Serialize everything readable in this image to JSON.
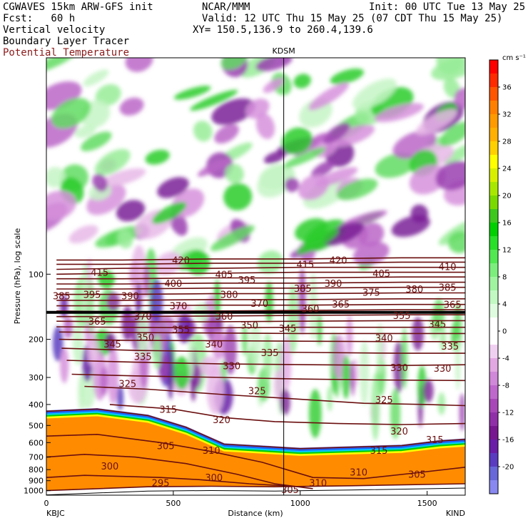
{
  "header": {
    "model": "CGWAVES 15km ARW-GFS init",
    "org": "NCAR/MMM",
    "init": "Init: 00 UTC Tue 13 May 25",
    "fcst": "Fcst:   60 h",
    "valid": "Valid: 12 UTC Thu 15 May 25 (07 CDT Thu 15 May 25)",
    "field1": "Vertical velocity",
    "xy": "XY= 150.5,136.9 to 260.4,139.6",
    "field2": "Boundary Layer Tracer",
    "field3": "Potential Temperature"
  },
  "colors": {
    "field3_text": "#8b1a1a",
    "contour": "#6b0f0f",
    "tracer": "#ff8c00",
    "terrain": "#ffffff"
  },
  "chart_data": {
    "type": "heatmap",
    "xlabel": "Distance (km)",
    "ylabel": "Pressure (hPa), log scale",
    "xlim": [
      0,
      1650
    ],
    "ylim": [
      1050,
      10
    ],
    "yscale": "log",
    "x_ticks": [
      0,
      500,
      1000,
      1500
    ],
    "x_tick_labels": [
      "0",
      "500",
      "1000",
      "1500"
    ],
    "y_ticks": [
      100,
      200,
      300,
      400,
      500,
      600,
      700,
      800,
      900,
      1000
    ],
    "y_tick_labels": [
      "100",
      "200",
      "300",
      "400",
      "500",
      "600",
      "700",
      "800",
      "900",
      "1000"
    ],
    "station_left": "KBJC",
    "station_right": "KIND",
    "station_mid": "KDSM",
    "station_mid_x": 935,
    "colorbar": {
      "unit": "cm s⁻¹",
      "tick_values": [
        36,
        32,
        28,
        24,
        20,
        16,
        12,
        8,
        4,
        0,
        -4,
        -8,
        -12,
        -16,
        -20
      ],
      "tick_labels": [
        "36",
        "32",
        "28",
        "24",
        "20",
        "16",
        "12",
        "8",
        "4",
        "0",
        "-4",
        "-8",
        "-12",
        "-16",
        "-20"
      ],
      "colors": [
        "#ff0000",
        "#ff2a00",
        "#ff5500",
        "#ff8000",
        "#ff9a00",
        "#ffb000",
        "#ffd000",
        "#ffff00",
        "#d8f000",
        "#a8e800",
        "#7ada00",
        "#3ec81e",
        "#00d000",
        "#28e028",
        "#52e852",
        "#7cee7c",
        "#a0f4a0",
        "#c2f8c2",
        "#e0fce0",
        "#ffffff",
        "#ffffff",
        "#f0d0f0",
        "#e2a8e2",
        "#d088d8",
        "#be68cc",
        "#a848b8",
        "#9030a8",
        "#781890",
        "#6a1ea8",
        "#5a3cc0",
        "#6868d8",
        "#8888f0"
      ]
    },
    "theta_contours": [
      {
        "label": "295",
        "points": [
          [
            0,
            1000
          ],
          [
            200,
            980
          ],
          [
            400,
            960
          ],
          [
            650,
            955
          ],
          [
            900,
            960
          ],
          [
            1200,
            950
          ],
          [
            1650,
            930
          ]
        ]
      },
      {
        "label": "300",
        "points": [
          [
            0,
            870
          ],
          [
            150,
            850
          ],
          [
            300,
            860
          ],
          [
            450,
            870
          ],
          [
            600,
            890
          ],
          [
            800,
            930
          ],
          [
            1000,
            960
          ]
        ]
      },
      {
        "label": "305",
        "points": [
          [
            0,
            700
          ],
          [
            150,
            680
          ],
          [
            350,
            700
          ],
          [
            550,
            750
          ],
          [
            750,
            840
          ],
          [
            900,
            930
          ],
          [
            1050,
            980
          ]
        ]
      },
      {
        "label": "310",
        "points": [
          [
            0,
            560
          ],
          [
            200,
            550
          ],
          [
            450,
            600
          ],
          [
            650,
            660
          ],
          [
            850,
            740
          ],
          [
            1050,
            870
          ],
          [
            1250,
            880
          ],
          [
            1450,
            830
          ],
          [
            1650,
            780
          ]
        ]
      },
      {
        "label": "315",
        "points": [
          [
            0,
            430
          ],
          [
            200,
            420
          ],
          [
            400,
            450
          ],
          [
            550,
            510
          ],
          [
            700,
            610
          ],
          [
            1000,
            640
          ],
          [
            1400,
            620
          ],
          [
            1550,
            590
          ],
          [
            1650,
            580
          ]
        ]
      },
      {
        "label": "320",
        "points": [
          [
            250,
            400
          ],
          [
            500,
            420
          ],
          [
            700,
            460
          ],
          [
            900,
            480
          ],
          [
            1150,
            490
          ],
          [
            1400,
            495
          ],
          [
            1650,
            490
          ]
        ]
      },
      {
        "label": "325",
        "points": [
          [
            150,
            330
          ],
          [
            400,
            340
          ],
          [
            700,
            360
          ],
          [
            950,
            375
          ],
          [
            1250,
            395
          ],
          [
            1500,
            400
          ],
          [
            1650,
            405
          ]
        ]
      },
      {
        "label": "330",
        "points": [
          [
            100,
            290
          ],
          [
            350,
            295
          ],
          [
            700,
            300
          ],
          [
            1000,
            305
          ],
          [
            1300,
            308
          ],
          [
            1650,
            310
          ]
        ]
      },
      {
        "label": "335",
        "points": [
          [
            80,
            250
          ],
          [
            350,
            255
          ],
          [
            700,
            260
          ],
          [
            1050,
            262
          ],
          [
            1400,
            264
          ],
          [
            1650,
            262
          ]
        ]
      },
      {
        "label": "340",
        "points": [
          [
            60,
            220
          ],
          [
            350,
            225
          ],
          [
            700,
            228
          ],
          [
            1050,
            230
          ],
          [
            1400,
            232
          ],
          [
            1650,
            232
          ]
        ]
      },
      {
        "label": "345",
        "points": [
          [
            50,
            200
          ],
          [
            300,
            202
          ],
          [
            650,
            203
          ],
          [
            1000,
            204
          ],
          [
            1400,
            205
          ],
          [
            1650,
            205
          ]
        ]
      },
      {
        "label": "350",
        "points": [
          [
            50,
            185
          ],
          [
            300,
            186
          ],
          [
            650,
            187
          ],
          [
            1000,
            188
          ],
          [
            1400,
            188
          ],
          [
            1650,
            188
          ]
        ]
      },
      {
        "label": "355",
        "points": [
          [
            40,
            175
          ],
          [
            300,
            176
          ],
          [
            650,
            177
          ],
          [
            1000,
            176
          ],
          [
            1400,
            176
          ],
          [
            1650,
            176
          ]
        ]
      },
      {
        "label": "360",
        "points": [
          [
            40,
            165
          ],
          [
            300,
            166
          ],
          [
            650,
            166
          ],
          [
            1000,
            165
          ],
          [
            1400,
            164
          ],
          [
            1650,
            164
          ]
        ]
      },
      {
        "label": "365",
        "points": [
          [
            40,
            157
          ],
          [
            300,
            157
          ],
          [
            650,
            156
          ],
          [
            1000,
            155
          ],
          [
            1400,
            154
          ],
          [
            1650,
            154
          ]
        ]
      },
      {
        "label": "370",
        "points": [
          [
            40,
            148
          ],
          [
            300,
            149
          ],
          [
            650,
            148
          ],
          [
            1000,
            147
          ],
          [
            1400,
            146
          ],
          [
            1650,
            146
          ]
        ]
      },
      {
        "label": "375",
        "points": [
          [
            40,
            140
          ],
          [
            300,
            140
          ],
          [
            650,
            139
          ],
          [
            1000,
            139
          ],
          [
            1400,
            138
          ],
          [
            1650,
            138
          ]
        ]
      },
      {
        "label": "380",
        "points": [
          [
            40,
            132
          ],
          [
            300,
            132
          ],
          [
            650,
            131
          ],
          [
            1000,
            131
          ],
          [
            1400,
            130
          ],
          [
            1650,
            130
          ]
        ]
      },
      {
        "label": "385",
        "points": [
          [
            40,
            124
          ],
          [
            300,
            124
          ],
          [
            650,
            123
          ],
          [
            1000,
            123
          ],
          [
            1400,
            122
          ],
          [
            1650,
            122
          ]
        ]
      },
      {
        "label": "390",
        "points": [
          [
            40,
            117
          ],
          [
            300,
            117
          ],
          [
            650,
            116
          ],
          [
            1000,
            116
          ],
          [
            1400,
            115
          ],
          [
            1650,
            115
          ]
        ]
      },
      {
        "label": "395",
        "points": [
          [
            40,
            111
          ],
          [
            300,
            111
          ],
          [
            650,
            110
          ],
          [
            1000,
            110
          ],
          [
            1400,
            109
          ],
          [
            1650,
            109
          ]
        ]
      },
      {
        "label": "400",
        "points": [
          [
            40,
            105
          ],
          [
            300,
            105
          ],
          [
            650,
            104
          ],
          [
            1000,
            104
          ],
          [
            1400,
            103
          ],
          [
            1650,
            103
          ]
        ]
      },
      {
        "label": "405",
        "points": [
          [
            40,
            100
          ],
          [
            300,
            99
          ],
          [
            650,
            99
          ],
          [
            1000,
            98
          ],
          [
            1400,
            98
          ],
          [
            1650,
            98
          ]
        ]
      },
      {
        "label": "410",
        "points": [
          [
            40,
            95
          ],
          [
            300,
            94
          ],
          [
            650,
            94
          ],
          [
            1000,
            93
          ],
          [
            1400,
            93
          ],
          [
            1650,
            93
          ]
        ]
      },
      {
        "label": "415",
        "points": [
          [
            40,
            90
          ],
          [
            300,
            90
          ],
          [
            650,
            89
          ],
          [
            1000,
            89
          ],
          [
            1400,
            88
          ],
          [
            1650,
            88
          ]
        ]
      },
      {
        "label": "420",
        "points": [
          [
            40,
            86
          ],
          [
            300,
            86
          ],
          [
            650,
            85
          ],
          [
            1000,
            85
          ],
          [
            1400,
            84
          ],
          [
            1650,
            84
          ]
        ]
      }
    ],
    "theta_labels": [
      {
        "text": "420",
        "x": 530,
        "p": 86
      },
      {
        "text": "415",
        "x": 1020,
        "p": 90
      },
      {
        "text": "420",
        "x": 1150,
        "p": 86
      },
      {
        "text": "410",
        "x": 1580,
        "p": 92
      },
      {
        "text": "415",
        "x": 210,
        "p": 98
      },
      {
        "text": "405",
        "x": 700,
        "p": 100
      },
      {
        "text": "405",
        "x": 1320,
        "p": 99
      },
      {
        "text": "400",
        "x": 500,
        "p": 110
      },
      {
        "text": "395",
        "x": 790,
        "p": 106
      },
      {
        "text": "390",
        "x": 1130,
        "p": 110
      },
      {
        "text": "385",
        "x": 1010,
        "p": 116
      },
      {
        "text": "380",
        "x": 1450,
        "p": 117
      },
      {
        "text": "385",
        "x": 1580,
        "p": 115
      },
      {
        "text": "385",
        "x": 60,
        "p": 126
      },
      {
        "text": "395",
        "x": 180,
        "p": 124
      },
      {
        "text": "390",
        "x": 330,
        "p": 126
      },
      {
        "text": "380",
        "x": 720,
        "p": 124
      },
      {
        "text": "375",
        "x": 1280,
        "p": 121
      },
      {
        "text": "370",
        "x": 520,
        "p": 140
      },
      {
        "text": "370",
        "x": 840,
        "p": 136
      },
      {
        "text": "365",
        "x": 1160,
        "p": 137
      },
      {
        "text": "360",
        "x": 1040,
        "p": 144
      },
      {
        "text": "365",
        "x": 1600,
        "p": 138
      },
      {
        "text": "370",
        "x": 380,
        "p": 156
      },
      {
        "text": "360",
        "x": 700,
        "p": 156
      },
      {
        "text": "355",
        "x": 1400,
        "p": 155
      },
      {
        "text": "365",
        "x": 200,
        "p": 165
      },
      {
        "text": "350",
        "x": 800,
        "p": 172
      },
      {
        "text": "345",
        "x": 950,
        "p": 178
      },
      {
        "text": "345",
        "x": 1540,
        "p": 170
      },
      {
        "text": "355",
        "x": 530,
        "p": 180
      },
      {
        "text": "350",
        "x": 390,
        "p": 195
      },
      {
        "text": "340",
        "x": 1330,
        "p": 197
      },
      {
        "text": "345",
        "x": 260,
        "p": 210
      },
      {
        "text": "340",
        "x": 660,
        "p": 210
      },
      {
        "text": "335",
        "x": 1590,
        "p": 215
      },
      {
        "text": "335",
        "x": 380,
        "p": 240
      },
      {
        "text": "335",
        "x": 880,
        "p": 230
      },
      {
        "text": "330",
        "x": 730,
        "p": 265
      },
      {
        "text": "330",
        "x": 1390,
        "p": 270
      },
      {
        "text": "330",
        "x": 1560,
        "p": 272
      },
      {
        "text": "325",
        "x": 320,
        "p": 320
      },
      {
        "text": "325",
        "x": 830,
        "p": 345
      },
      {
        "text": "325",
        "x": 1330,
        "p": 380
      },
      {
        "text": "315",
        "x": 480,
        "p": 420
      },
      {
        "text": "320",
        "x": 690,
        "p": 470
      },
      {
        "text": "320",
        "x": 1390,
        "p": 530
      },
      {
        "text": "315",
        "x": 1530,
        "p": 580
      },
      {
        "text": "310",
        "x": 650,
        "p": 650
      },
      {
        "text": "315",
        "x": 1310,
        "p": 650
      },
      {
        "text": "305",
        "x": 470,
        "p": 620
      },
      {
        "text": "300",
        "x": 250,
        "p": 770
      },
      {
        "text": "300",
        "x": 660,
        "p": 870
      },
      {
        "text": "295",
        "x": 450,
        "p": 920
      },
      {
        "text": "310",
        "x": 1230,
        "p": 820
      },
      {
        "text": "305",
        "x": 1460,
        "p": 840
      },
      {
        "text": "310",
        "x": 1070,
        "p": 920
      },
      {
        "text": "305",
        "x": 960,
        "p": 990
      }
    ]
  }
}
